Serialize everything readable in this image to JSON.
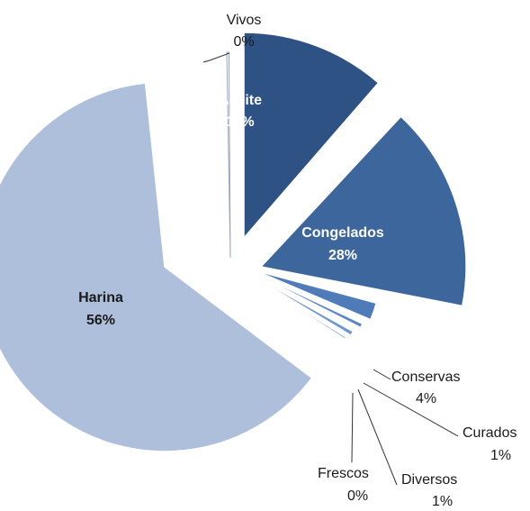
{
  "chart_data": {
    "type": "pie",
    "exploded": true,
    "series": [
      {
        "name": "Vivos",
        "value": 0,
        "label": "0%",
        "color": "#ffffff",
        "label_color": "#1a1a1a",
        "label_placement": "outside"
      },
      {
        "name": "Aceite",
        "value": 11,
        "label": "11%",
        "color": "#2e5283",
        "label_color": "#ffffff",
        "label_placement": "inside"
      },
      {
        "name": "Congelados",
        "value": 28,
        "label": "28%",
        "color": "#3d669c",
        "label_color": "#ffffff",
        "label_placement": "inside"
      },
      {
        "name": "Conservas",
        "value": 4,
        "label": "4%",
        "color": "#4f7cb8",
        "label_color": "#1a1a1a",
        "label_placement": "outside"
      },
      {
        "name": "Curados",
        "value": 1,
        "label": "1%",
        "color": "#5b87c2",
        "label_color": "#1a1a1a",
        "label_placement": "outside"
      },
      {
        "name": "Diversos",
        "value": 1,
        "label": "1%",
        "color": "#6f97cc",
        "label_color": "#1a1a1a",
        "label_placement": "outside"
      },
      {
        "name": "Frescos",
        "value": 0,
        "label": "0%",
        "color": "#8aa9d6",
        "label_color": "#1a1a1a",
        "label_placement": "outside"
      },
      {
        "name": "Harina",
        "value": 56,
        "label": "56%",
        "color": "#aebfdc",
        "label_color": "#1a1a1a",
        "label_placement": "inside"
      }
    ]
  }
}
